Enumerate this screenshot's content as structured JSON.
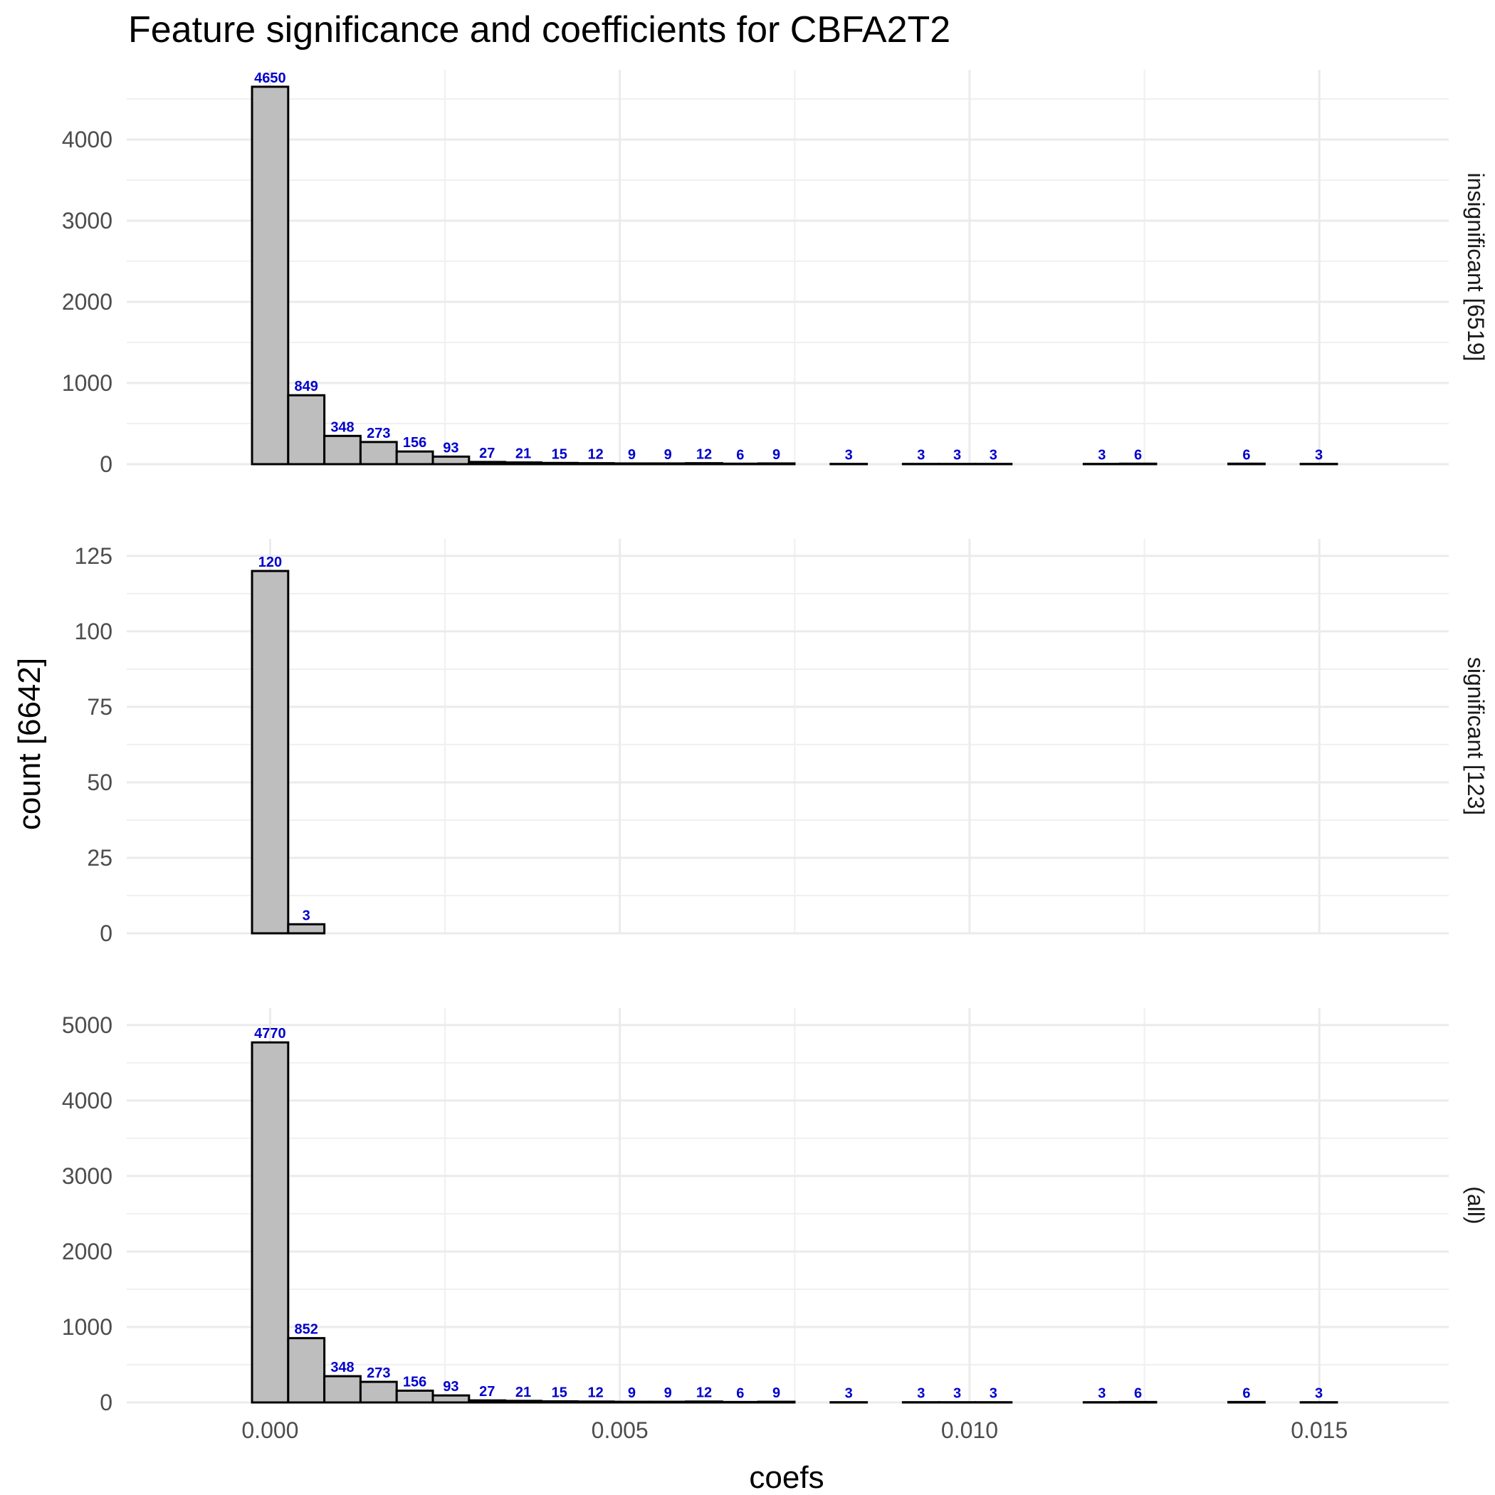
{
  "chart_data": {
    "type": "bar",
    "title": "Feature significance and coefficients for CBFA2T2",
    "xlabel": "coefs",
    "ylabel": "count [6642]",
    "xlim": [
      -0.00205,
      0.01685
    ],
    "x_ticks": [
      0.0,
      0.005,
      0.01,
      0.015
    ],
    "x_tick_labels": [
      "0.000",
      "0.005",
      "0.010",
      "0.015"
    ],
    "bin_width": 0.000517,
    "bin_start": -0.000517,
    "grid": true,
    "bar_fill": "#bebebe",
    "bar_outline": "#000000",
    "label_color": "#0000cc",
    "panels": [
      {
        "name": "insignificant [6519]",
        "ylim": [
          0,
          4650
        ],
        "y_ticks": [
          0,
          1000,
          2000,
          3000,
          4000
        ],
        "values": [
          4650,
          849,
          348,
          273,
          156,
          93,
          27,
          21,
          15,
          12,
          9,
          9,
          12,
          6,
          9,
          0,
          3,
          0,
          3,
          3,
          3,
          0,
          0,
          3,
          6,
          0,
          0,
          6,
          0,
          3
        ],
        "labels": [
          "4650",
          "849",
          "348",
          "273",
          "156",
          "93",
          "27",
          "21",
          "15",
          "12",
          "9",
          "9",
          "12",
          "6",
          "9",
          "",
          "3",
          "",
          "3",
          "3",
          "3",
          "",
          "",
          "3",
          "6",
          "",
          "",
          "6",
          "",
          "3"
        ]
      },
      {
        "name": "significant [123]",
        "ylim": [
          0,
          125
        ],
        "y_ticks": [
          0,
          25,
          50,
          75,
          100,
          125
        ],
        "values": [
          120,
          3,
          0,
          0,
          0,
          0,
          0,
          0,
          0,
          0,
          0,
          0,
          0,
          0,
          0,
          0,
          0,
          0,
          0,
          0,
          0,
          0,
          0,
          0,
          0,
          0,
          0,
          0,
          0,
          0
        ],
        "labels": [
          "120",
          "3",
          "",
          "",
          "",
          "",
          "",
          "",
          "",
          "",
          "",
          "",
          "",
          "",
          "",
          "",
          "",
          "",
          "",
          "",
          "",
          "",
          "",
          "",
          "",
          "",
          "",
          "",
          "",
          ""
        ]
      },
      {
        "name": "(all)",
        "ylim": [
          0,
          5000
        ],
        "y_ticks": [
          0,
          1000,
          2000,
          3000,
          4000,
          5000
        ],
        "values": [
          4770,
          852,
          348,
          273,
          156,
          93,
          27,
          21,
          15,
          12,
          9,
          9,
          12,
          6,
          9,
          0,
          3,
          0,
          3,
          3,
          3,
          0,
          0,
          3,
          6,
          0,
          0,
          6,
          0,
          3
        ],
        "labels": [
          "4770",
          "852",
          "348",
          "273",
          "156",
          "93",
          "27",
          "21",
          "15",
          "12",
          "9",
          "9",
          "12",
          "6",
          "9",
          "",
          "3",
          "",
          "3",
          "3",
          "3",
          "",
          "",
          "3",
          "6",
          "",
          "",
          "6",
          "",
          "3"
        ]
      }
    ]
  }
}
